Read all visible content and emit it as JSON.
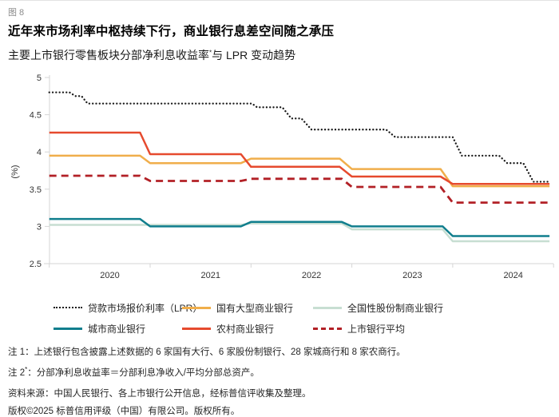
{
  "figure_label": "图 8",
  "title": "近年来市场利率中枢持续下行，商业银行息差空间随之承压",
  "subtitle": {
    "part1": "主要上市银行零售板块分部净利息收益率",
    "sup": "*",
    "part2": "与 LPR 变动趋势"
  },
  "chart_data": {
    "type": "line",
    "ylabel": "(%)",
    "ylim": [
      2.5,
      5
    ],
    "yticks": [
      5,
      4.5,
      4,
      3.5,
      3,
      2.5
    ],
    "xlim": [
      2020,
      2024.96
    ],
    "xtick_years": [
      "2020",
      "2021",
      "2022",
      "2023",
      "2024"
    ],
    "grid": false,
    "legend_position": "bottom",
    "draw_order": [
      2,
      1,
      4,
      3,
      5,
      0
    ],
    "series": [
      {
        "name": "贷款市场报价利率（LPR）",
        "style": "dotted",
        "color": "#1a1a1a",
        "points": [
          [
            2020.0,
            4.8
          ],
          [
            2020.2,
            4.8
          ],
          [
            2020.26,
            4.75
          ],
          [
            2020.32,
            4.75
          ],
          [
            2020.38,
            4.65
          ],
          [
            2022.01,
            4.65
          ],
          [
            2022.06,
            4.6
          ],
          [
            2022.31,
            4.6
          ],
          [
            2022.4,
            4.45
          ],
          [
            2022.5,
            4.45
          ],
          [
            2022.6,
            4.3
          ],
          [
            2023.34,
            4.3
          ],
          [
            2023.43,
            4.2
          ],
          [
            2024.0,
            4.2
          ],
          [
            2024.09,
            3.95
          ],
          [
            2024.46,
            3.95
          ],
          [
            2024.54,
            3.85
          ],
          [
            2024.7,
            3.85
          ],
          [
            2024.8,
            3.6
          ],
          [
            2024.96,
            3.6
          ]
        ]
      },
      {
        "name": "国有大型商业银行",
        "style": "solid",
        "color": "#F0AE4B",
        "points": [
          [
            2020.0,
            3.95
          ],
          [
            2020.9,
            3.95
          ],
          [
            2021.0,
            3.85
          ],
          [
            2021.9,
            3.85
          ],
          [
            2022.0,
            3.91
          ],
          [
            2022.88,
            3.91
          ],
          [
            2023.0,
            3.77
          ],
          [
            2023.88,
            3.77
          ],
          [
            2024.0,
            3.54
          ],
          [
            2024.96,
            3.54
          ]
        ]
      },
      {
        "name": "全国性股份制商业银行",
        "style": "solid",
        "color": "#C7DED2",
        "points": [
          [
            2020.0,
            3.02
          ],
          [
            2020.9,
            3.02
          ],
          [
            2021.0,
            3.02
          ],
          [
            2021.9,
            3.02
          ],
          [
            2022.0,
            3.04
          ],
          [
            2022.9,
            3.04
          ],
          [
            2023.0,
            2.96
          ],
          [
            2023.9,
            2.96
          ],
          [
            2024.0,
            2.8
          ],
          [
            2024.96,
            2.8
          ]
        ]
      },
      {
        "name": "城市商业银行",
        "style": "solid",
        "color": "#107E8D",
        "points": [
          [
            2020.0,
            3.1
          ],
          [
            2020.9,
            3.1
          ],
          [
            2021.0,
            3.0
          ],
          [
            2021.9,
            3.0
          ],
          [
            2022.0,
            3.06
          ],
          [
            2022.9,
            3.06
          ],
          [
            2023.0,
            3.0
          ],
          [
            2023.9,
            3.0
          ],
          [
            2024.0,
            2.87
          ],
          [
            2024.96,
            2.87
          ]
        ]
      },
      {
        "name": "农村商业银行",
        "style": "solid",
        "color": "#E64A2E",
        "points": [
          [
            2020.0,
            4.26
          ],
          [
            2020.9,
            4.26
          ],
          [
            2021.0,
            3.97
          ],
          [
            2021.9,
            3.97
          ],
          [
            2022.0,
            3.8
          ],
          [
            2022.88,
            3.8
          ],
          [
            2023.0,
            3.67
          ],
          [
            2023.88,
            3.67
          ],
          [
            2024.0,
            3.57
          ],
          [
            2024.96,
            3.57
          ]
        ]
      },
      {
        "name": "上市银行平均",
        "style": "dashed",
        "color": "#B22026",
        "points": [
          [
            2020.0,
            3.68
          ],
          [
            2020.9,
            3.68
          ],
          [
            2021.0,
            3.61
          ],
          [
            2021.9,
            3.61
          ],
          [
            2022.0,
            3.64
          ],
          [
            2022.9,
            3.64
          ],
          [
            2023.0,
            3.53
          ],
          [
            2023.88,
            3.53
          ],
          [
            2024.0,
            3.32
          ],
          [
            2024.96,
            3.32
          ]
        ]
      }
    ]
  },
  "notes": {
    "note1": "注 1：上述银行包含披露上述数据的 6 家国有大行、6 家股份制银行、28 家城商行和 8 家农商行。",
    "note2_part1": "注 2",
    "note2_sup": "*",
    "note2_part2": "：分部净利息收益率＝分部利息净收入/平均分部总资产。",
    "source": "资料来源：中国人民银行、各上市银行公开信息，经标普信评收集及整理。",
    "copyright": "版权©2025 标普信用评级（中国）有限公司。版权所有。"
  }
}
